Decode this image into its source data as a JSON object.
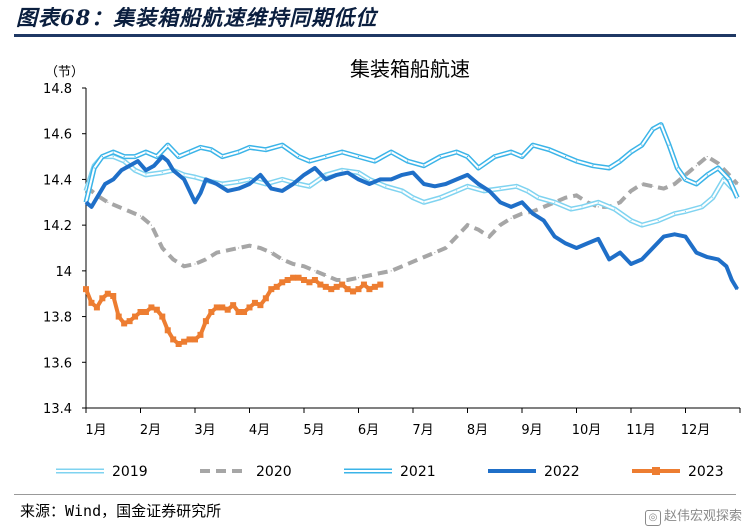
{
  "figure_title": "图表68：集装箱船航速维持同期低位",
  "source_text": "来源：Wind，国金证券研究所",
  "watermark_text": "赵伟宏观探索",
  "watermark_icon": "wechat-icon",
  "chart_data": {
    "type": "line",
    "title": "集装箱船航速",
    "ylabel": "（节）",
    "xlabel": "",
    "ylim": [
      13.4,
      14.8
    ],
    "yticks": [
      13.4,
      13.6,
      13.8,
      14,
      14.2,
      14.4,
      14.6,
      14.8
    ],
    "ytick_labels": [
      "13.4",
      "13.6",
      "13.8",
      "14",
      "14.2",
      "14.4",
      "14.6",
      "14.8"
    ],
    "xlim": [
      1,
      13
    ],
    "month_labels": [
      "1月",
      "2月",
      "3月",
      "4月",
      "5月",
      "6月",
      "7月",
      "8月",
      "9月",
      "10月",
      "11月",
      "12月"
    ],
    "grid": false,
    "legend_position": "bottom",
    "series": [
      {
        "name": "2019",
        "color": "#7fd3f0",
        "style": "double-light",
        "x": [
          1,
          1.15,
          1.3,
          1.5,
          1.7,
          1.9,
          2.1,
          2.4,
          2.6,
          2.8,
          3,
          3.3,
          3.5,
          3.8,
          4,
          4.3,
          4.6,
          4.9,
          5.1,
          5.4,
          5.7,
          6,
          6.2,
          6.5,
          6.8,
          7,
          7.2,
          7.5,
          7.8,
          8,
          8.3,
          8.6,
          8.9,
          9.1,
          9.3,
          9.6,
          9.9,
          10.1,
          10.4,
          10.7,
          11,
          11.2,
          11.5,
          11.8,
          12,
          12.3,
          12.5,
          12.7,
          12.9
        ],
        "y": [
          14.35,
          14.46,
          14.5,
          14.5,
          14.48,
          14.44,
          14.42,
          14.43,
          14.44,
          14.42,
          14.41,
          14.39,
          14.38,
          14.39,
          14.4,
          14.38,
          14.4,
          14.38,
          14.37,
          14.42,
          14.44,
          14.43,
          14.4,
          14.37,
          14.35,
          14.32,
          14.3,
          14.32,
          14.35,
          14.37,
          14.35,
          14.36,
          14.37,
          14.35,
          14.32,
          14.3,
          14.27,
          14.28,
          14.3,
          14.27,
          14.22,
          14.2,
          14.22,
          14.25,
          14.26,
          14.28,
          14.32,
          14.4,
          14.35
        ]
      },
      {
        "name": "2020",
        "color": "#a6a6a6",
        "style": "dashed",
        "x": [
          1,
          1.2,
          1.4,
          1.6,
          1.8,
          2,
          2.2,
          2.4,
          2.6,
          2.8,
          3,
          3.2,
          3.4,
          3.6,
          3.8,
          4,
          4.2,
          4.4,
          4.6,
          4.8,
          5,
          5.2,
          5.4,
          5.6,
          5.8,
          6,
          6.2,
          6.4,
          6.6,
          6.8,
          7,
          7.2,
          7.4,
          7.6,
          7.8,
          8,
          8.2,
          8.4,
          8.6,
          8.8,
          9,
          9.2,
          9.4,
          9.6,
          9.8,
          10,
          10.2,
          10.4,
          10.6,
          10.8,
          11,
          11.2,
          11.4,
          11.6,
          11.8,
          12,
          12.2,
          12.4,
          12.6,
          12.8,
          12.95
        ],
        "y": [
          14.37,
          14.33,
          14.3,
          14.28,
          14.26,
          14.24,
          14.2,
          14.1,
          14.05,
          14.02,
          14.03,
          14.05,
          14.08,
          14.09,
          14.1,
          14.11,
          14.1,
          14.08,
          14.05,
          14.03,
          14.02,
          14.0,
          13.98,
          13.96,
          13.96,
          13.97,
          13.98,
          13.99,
          14.0,
          14.02,
          14.04,
          14.06,
          14.08,
          14.1,
          14.15,
          14.2,
          14.18,
          14.15,
          14.2,
          14.23,
          14.25,
          14.26,
          14.28,
          14.3,
          14.32,
          14.33,
          14.3,
          14.28,
          14.28,
          14.3,
          14.35,
          14.38,
          14.37,
          14.36,
          14.38,
          14.42,
          14.46,
          14.5,
          14.47,
          14.42,
          14.38
        ]
      },
      {
        "name": "2021",
        "color": "#3bb4e8",
        "style": "double",
        "x": [
          1,
          1.15,
          1.3,
          1.5,
          1.7,
          1.9,
          2.1,
          2.3,
          2.5,
          2.7,
          2.9,
          3.1,
          3.3,
          3.5,
          3.8,
          4,
          4.3,
          4.6,
          4.9,
          5.1,
          5.4,
          5.7,
          6,
          6.3,
          6.6,
          6.9,
          7.2,
          7.5,
          7.8,
          8,
          8.2,
          8.5,
          8.8,
          9,
          9.2,
          9.5,
          9.8,
          10,
          10.3,
          10.6,
          10.8,
          11,
          11.2,
          11.4,
          11.55,
          11.7,
          11.85,
          12,
          12.2,
          12.4,
          12.6,
          12.8,
          12.95
        ],
        "y": [
          14.3,
          14.45,
          14.5,
          14.52,
          14.5,
          14.5,
          14.52,
          14.5,
          14.55,
          14.5,
          14.52,
          14.54,
          14.53,
          14.5,
          14.52,
          14.54,
          14.53,
          14.55,
          14.5,
          14.48,
          14.5,
          14.52,
          14.5,
          14.48,
          14.52,
          14.48,
          14.46,
          14.5,
          14.52,
          14.5,
          14.45,
          14.5,
          14.52,
          14.5,
          14.55,
          14.53,
          14.5,
          14.48,
          14.46,
          14.45,
          14.48,
          14.52,
          14.55,
          14.62,
          14.64,
          14.55,
          14.45,
          14.4,
          14.38,
          14.42,
          14.45,
          14.4,
          14.32
        ]
      },
      {
        "name": "2022",
        "color": "#1f6fc8",
        "style": "thick",
        "x": [
          1,
          1.1,
          1.2,
          1.35,
          1.5,
          1.65,
          1.8,
          1.95,
          2.1,
          2.25,
          2.4,
          2.5,
          2.6,
          2.7,
          2.8,
          2.9,
          3.0,
          3.1,
          3.2,
          3.4,
          3.6,
          3.8,
          4.0,
          4.2,
          4.4,
          4.6,
          4.8,
          5.0,
          5.2,
          5.4,
          5.6,
          5.8,
          6.0,
          6.2,
          6.4,
          6.6,
          6.8,
          7.0,
          7.2,
          7.4,
          7.6,
          7.8,
          8.0,
          8.2,
          8.4,
          8.6,
          8.8,
          9.0,
          9.2,
          9.4,
          9.6,
          9.8,
          10.0,
          10.2,
          10.4,
          10.6,
          10.8,
          11.0,
          11.2,
          11.4,
          11.6,
          11.8,
          12.0,
          12.2,
          12.4,
          12.6,
          12.75,
          12.85,
          12.95
        ],
        "y": [
          14.3,
          14.28,
          14.32,
          14.38,
          14.4,
          14.44,
          14.46,
          14.48,
          14.44,
          14.46,
          14.5,
          14.48,
          14.44,
          14.42,
          14.4,
          14.35,
          14.3,
          14.34,
          14.4,
          14.38,
          14.35,
          14.36,
          14.38,
          14.42,
          14.36,
          14.35,
          14.38,
          14.42,
          14.45,
          14.4,
          14.42,
          14.43,
          14.4,
          14.38,
          14.4,
          14.4,
          14.42,
          14.43,
          14.38,
          14.37,
          14.38,
          14.4,
          14.42,
          14.38,
          14.35,
          14.3,
          14.28,
          14.3,
          14.25,
          14.22,
          14.15,
          14.12,
          14.1,
          14.12,
          14.14,
          14.05,
          14.08,
          14.03,
          14.05,
          14.1,
          14.15,
          14.16,
          14.15,
          14.08,
          14.06,
          14.05,
          14.02,
          13.96,
          13.92
        ]
      },
      {
        "name": "2023",
        "color": "#ed7d31",
        "style": "thick-marker",
        "x": [
          1,
          1.1,
          1.2,
          1.3,
          1.4,
          1.5,
          1.6,
          1.7,
          1.8,
          1.9,
          2.0,
          2.1,
          2.2,
          2.3,
          2.4,
          2.5,
          2.6,
          2.7,
          2.8,
          2.9,
          3.0,
          3.1,
          3.2,
          3.3,
          3.4,
          3.5,
          3.6,
          3.7,
          3.8,
          3.9,
          4.0,
          4.1,
          4.2,
          4.3,
          4.4,
          4.5,
          4.6,
          4.7,
          4.8,
          4.9,
          5.0,
          5.1,
          5.2,
          5.3,
          5.4,
          5.5,
          5.6,
          5.7,
          5.8,
          5.9,
          6.0,
          6.1,
          6.2,
          6.3,
          6.4
        ],
        "y": [
          13.92,
          13.86,
          13.84,
          13.88,
          13.9,
          13.89,
          13.8,
          13.77,
          13.78,
          13.8,
          13.82,
          13.82,
          13.84,
          13.83,
          13.8,
          13.74,
          13.7,
          13.68,
          13.69,
          13.7,
          13.7,
          13.72,
          13.78,
          13.82,
          13.84,
          13.84,
          13.83,
          13.85,
          13.82,
          13.82,
          13.84,
          13.86,
          13.85,
          13.88,
          13.92,
          13.93,
          13.95,
          13.96,
          13.97,
          13.97,
          13.96,
          13.95,
          13.96,
          13.94,
          13.93,
          13.92,
          13.93,
          13.94,
          13.92,
          13.91,
          13.92,
          13.94,
          13.92,
          13.93,
          13.94
        ]
      }
    ]
  }
}
